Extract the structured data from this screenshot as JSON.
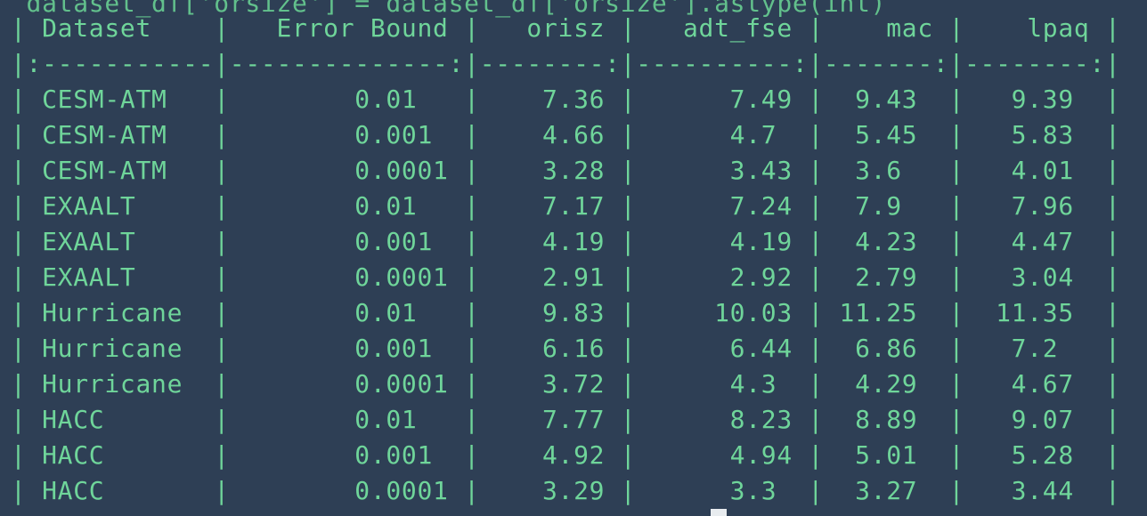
{
  "terminal": {
    "top_partial_line": " dataset_df['orsize'] = dataset_df['orsize'].astype(int)",
    "header": "| Dataset    |   Error Bound |   orisz |   adt_fse |    mac |    lpaq |",
    "separator": "|:-----------|--------------:|--------:|----------:|-------:|--------:|",
    "rows": [
      "| CESM-ATM   |        0.01   |    7.36 |      7.49 |  9.43  |   9.39  |",
      "| CESM-ATM   |        0.001  |    4.66 |      4.7  |  5.45  |   5.83  |",
      "| CESM-ATM   |        0.0001 |    3.28 |      3.43 |  3.6   |   4.01  |",
      "| EXAALT     |        0.01   |    7.17 |      7.24 |  7.9   |   7.96  |",
      "| EXAALT     |        0.001  |    4.19 |      4.19 |  4.23  |   4.47  |",
      "| EXAALT     |        0.0001 |    2.91 |      2.92 |  2.79  |   3.04  |",
      "| Hurricane  |        0.01   |    9.83 |     10.03 | 11.25  |  11.35  |",
      "| Hurricane  |        0.001  |    6.16 |      6.44 |  6.86  |   7.2   |",
      "| Hurricane  |        0.0001 |    3.72 |      4.3  |  4.29  |   4.67  |",
      "| HACC       |        0.01   |    7.77 |      8.23 |  8.89  |   9.07  |",
      "| HACC       |        0.001  |    4.92 |      4.94 |  5.01  |   5.28  |",
      "| HACC       |        0.0001 |    3.29 |      3.3  |  3.27  |   3.44  |"
    ],
    "colors": {
      "background": "#2e3f55",
      "text": "#6fd59a",
      "cursor": "#e8ecef"
    }
  }
}
